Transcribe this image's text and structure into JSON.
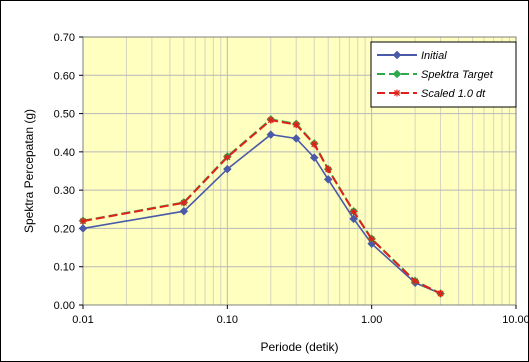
{
  "chart_data": {
    "type": "line",
    "title": "",
    "xlabel": "Periode (detik)",
    "ylabel": "Spektra Percepatan (g)",
    "xscale": "log",
    "xlim": [
      0.01,
      10
    ],
    "ylim": [
      0,
      0.7
    ],
    "x_ticks": [
      "0.01",
      "0.10",
      "1.00",
      "10.00"
    ],
    "y_ticks": [
      "0.00",
      "0.10",
      "0.20",
      "0.30",
      "0.40",
      "0.50",
      "0.60",
      "0.70"
    ],
    "grid": true,
    "legend_position": "top-right",
    "plot_background": "#ffffc0",
    "series": [
      {
        "name": "Initial",
        "color": "#4a5aa8",
        "line_style": "solid",
        "marker": "diamond",
        "x": [
          0.01,
          0.05,
          0.1,
          0.2,
          0.3,
          0.4,
          0.5,
          0.75,
          1.0,
          2.0,
          3.0
        ],
        "y": [
          0.2,
          0.245,
          0.355,
          0.445,
          0.435,
          0.385,
          0.328,
          0.225,
          0.16,
          0.058,
          0.03
        ]
      },
      {
        "name": "Spektra Target",
        "color": "#2ea84a",
        "line_style": "dashed",
        "marker": "diamond",
        "x": [
          0.01,
          0.05,
          0.1,
          0.2,
          0.3,
          0.4,
          0.5,
          0.75,
          1.0,
          2.0,
          3.0
        ],
        "y": [
          0.22,
          0.268,
          0.388,
          0.485,
          0.473,
          0.422,
          0.355,
          0.245,
          0.173,
          0.063,
          0.03
        ]
      },
      {
        "name": "Scaled 1.0 dt",
        "color": "#e0201a",
        "line_style": "dashed",
        "marker": "asterisk",
        "x": [
          0.01,
          0.05,
          0.1,
          0.2,
          0.3,
          0.4,
          0.5,
          0.75,
          1.0,
          2.0,
          3.0
        ],
        "y": [
          0.219,
          0.267,
          0.386,
          0.483,
          0.471,
          0.42,
          0.354,
          0.244,
          0.172,
          0.062,
          0.03
        ]
      }
    ]
  }
}
